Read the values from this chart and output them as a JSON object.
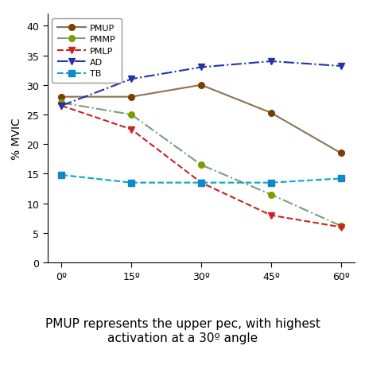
{
  "x_labels": [
    "0º",
    "15º",
    "30º",
    "45º",
    "60º"
  ],
  "x_values": [
    0,
    15,
    30,
    45,
    60
  ],
  "series": {
    "PMUP": {
      "values": [
        28,
        28,
        30,
        25.3,
        18.5
      ],
      "color": "#8B7355",
      "linestyle": "-",
      "marker": "o",
      "marker_color": "#7B3F00",
      "linewidth": 1.5
    },
    "PMMP": {
      "values": [
        27,
        25,
        16.5,
        11.5,
        6.2
      ],
      "color": "#7A9E7A",
      "linestyle": "-.",
      "marker": "o",
      "marker_color": "#7A9E00",
      "linewidth": 1.5
    },
    "PMLP": {
      "values": [
        26.5,
        22.5,
        13.5,
        8,
        6
      ],
      "color": "#CC2222",
      "linestyle": "--",
      "marker": "v",
      "marker_color": "#CC2222",
      "linewidth": 1.5
    },
    "AD": {
      "values": [
        26.5,
        31,
        33,
        34,
        33.2
      ],
      "color": "#2233AA",
      "linestyle": "-.",
      "marker": "v",
      "marker_color": "#2233AA",
      "linewidth": 1.5
    },
    "TB": {
      "values": [
        14.8,
        13.5,
        13.5,
        13.5,
        14.2
      ],
      "color": "#00AACC",
      "linestyle": "--",
      "marker": "s",
      "marker_color": "#1188CC",
      "linewidth": 1.5
    }
  },
  "ylabel": "% MVIC",
  "ylim": [
    0,
    42
  ],
  "yticks": [
    0,
    5,
    10,
    15,
    20,
    25,
    30,
    35,
    40
  ],
  "caption": "PMUP represents the upper pec, with highest\nactivation at a 30º angle",
  "caption_fontsize": 11,
  "background_color": "#FFFFFF"
}
